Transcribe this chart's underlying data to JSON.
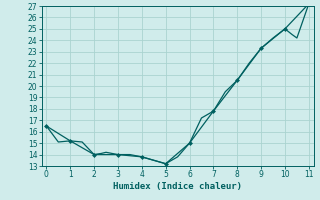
{
  "line1_x": [
    0,
    0.5,
    1,
    1.5,
    2,
    2.3,
    2.5,
    3,
    3.3,
    3.5,
    4,
    4.5,
    5,
    5.5,
    6,
    6.5,
    7,
    7.5,
    8,
    8.5,
    9,
    9.5,
    10,
    10.3,
    10.5,
    11
  ],
  "line1_y": [
    16.5,
    15.1,
    15.2,
    15.1,
    14.0,
    14.1,
    14.2,
    14.0,
    14.0,
    14.0,
    13.8,
    13.5,
    13.2,
    13.8,
    15.0,
    17.2,
    17.8,
    19.5,
    20.5,
    22.0,
    23.3,
    24.2,
    25.0,
    24.5,
    24.2,
    27.2
  ],
  "line2_x": [
    0,
    1,
    2,
    3,
    4,
    5,
    6,
    7,
    8,
    9,
    10,
    11
  ],
  "line2_y": [
    16.5,
    15.2,
    14.0,
    14.0,
    13.8,
    13.2,
    15.0,
    17.8,
    20.5,
    23.3,
    25.0,
    27.2
  ],
  "color": "#006060",
  "bg_color": "#d0eceb",
  "grid_color": "#aad4d0",
  "xlabel": "Humidex (Indice chaleur)",
  "ylim": [
    13,
    27
  ],
  "xlim": [
    -0.2,
    11.2
  ],
  "yticks": [
    13,
    14,
    15,
    16,
    17,
    18,
    19,
    20,
    21,
    22,
    23,
    24,
    25,
    26,
    27
  ],
  "xticks": [
    0,
    1,
    2,
    3,
    4,
    5,
    6,
    7,
    8,
    9,
    10,
    11
  ]
}
